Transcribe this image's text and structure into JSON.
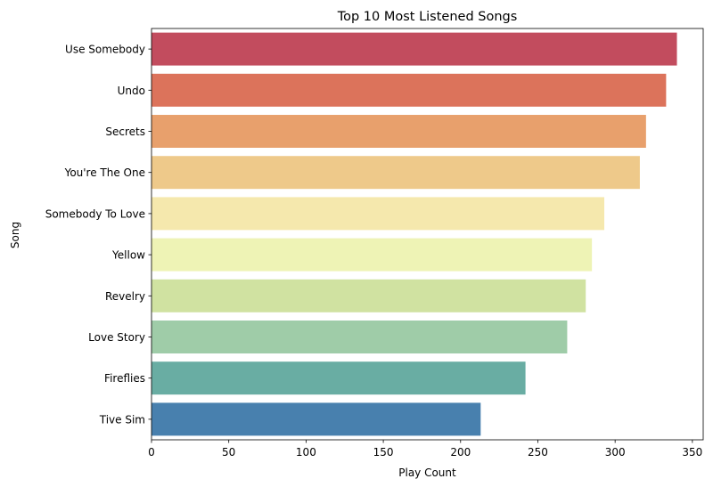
{
  "chart_data": {
    "type": "bar",
    "orientation": "horizontal",
    "title": "Top 10 Most Listened Songs",
    "xlabel": "Play Count",
    "ylabel": "Song",
    "xlim": [
      0,
      357
    ],
    "xticks": [
      0,
      50,
      100,
      150,
      200,
      250,
      300,
      350
    ],
    "grid": false,
    "legend": "none",
    "categories": [
      "Use Somebody",
      "Undo",
      "Secrets",
      "You're The One",
      "Somebody To Love",
      "Yellow",
      "Revelry",
      "Love Story",
      "Fireflies",
      "Tive Sim"
    ],
    "values": [
      340,
      333,
      320,
      316,
      293,
      285,
      281,
      269,
      242,
      213
    ],
    "colors": [
      "#c24c5e",
      "#dc735b",
      "#e8a06c",
      "#eec98a",
      "#f5e8ad",
      "#eef3b5",
      "#d0e2a1",
      "#9fcca8",
      "#69ada3",
      "#4880ae"
    ]
  }
}
